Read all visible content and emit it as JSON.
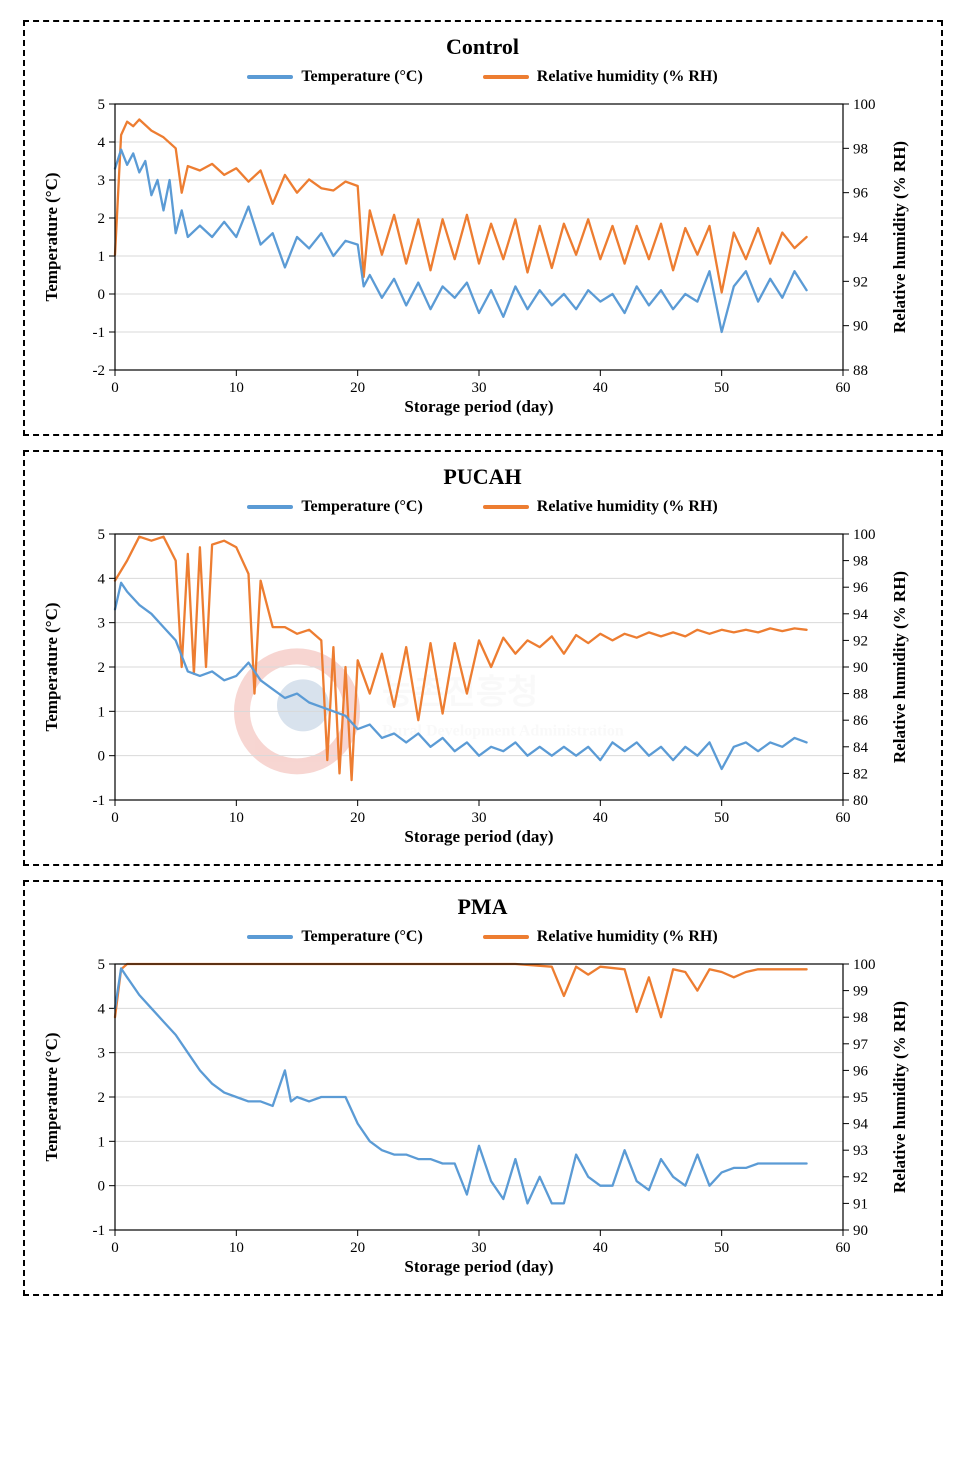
{
  "global": {
    "font_family": "Times New Roman",
    "panel_border": "2px dashed #000",
    "legend_series1": "Temperature (°C)",
    "legend_series2": "Relative humidity (% RH)",
    "color_temp": "#5b9bd5",
    "color_rh": "#ed7d31",
    "line_width": 2.3,
    "bg": "#ffffff"
  },
  "panels": [
    {
      "id": "control",
      "title": "Control",
      "xlabel": "Storage period (day)",
      "ylabel_left": "Temperature (°C)",
      "ylabel_right": "Relative humidity (% RH)",
      "xlim": [
        0,
        60
      ],
      "xtick_step": 10,
      "ylim_left": [
        -2,
        5
      ],
      "ytick_left_step": 1,
      "ylim_right": [
        88,
        100
      ],
      "ytick_right_step": 2,
      "grid": true,
      "grid_color": "#d9d9d9",
      "temp_series": [
        [
          0,
          3.3
        ],
        [
          0.5,
          3.8
        ],
        [
          1,
          3.4
        ],
        [
          1.5,
          3.7
        ],
        [
          2,
          3.2
        ],
        [
          2.5,
          3.5
        ],
        [
          3,
          2.6
        ],
        [
          3.5,
          3.0
        ],
        [
          4,
          2.2
        ],
        [
          4.5,
          3.0
        ],
        [
          5,
          1.6
        ],
        [
          5.5,
          2.2
        ],
        [
          6,
          1.5
        ],
        [
          7,
          1.8
        ],
        [
          8,
          1.5
        ],
        [
          9,
          1.9
        ],
        [
          10,
          1.5
        ],
        [
          11,
          2.3
        ],
        [
          12,
          1.3
        ],
        [
          13,
          1.6
        ],
        [
          14,
          0.7
        ],
        [
          15,
          1.5
        ],
        [
          16,
          1.2
        ],
        [
          17,
          1.6
        ],
        [
          18,
          1.0
        ],
        [
          19,
          1.4
        ],
        [
          20,
          1.3
        ],
        [
          20.5,
          0.2
        ],
        [
          21,
          0.5
        ],
        [
          22,
          -0.1
        ],
        [
          23,
          0.4
        ],
        [
          24,
          -0.3
        ],
        [
          25,
          0.3
        ],
        [
          26,
          -0.4
        ],
        [
          27,
          0.2
        ],
        [
          28,
          -0.1
        ],
        [
          29,
          0.3
        ],
        [
          30,
          -0.5
        ],
        [
          31,
          0.1
        ],
        [
          32,
          -0.6
        ],
        [
          33,
          0.2
        ],
        [
          34,
          -0.4
        ],
        [
          35,
          0.1
        ],
        [
          36,
          -0.3
        ],
        [
          37,
          0.0
        ],
        [
          38,
          -0.4
        ],
        [
          39,
          0.1
        ],
        [
          40,
          -0.2
        ],
        [
          41,
          0.0
        ],
        [
          42,
          -0.5
        ],
        [
          43,
          0.2
        ],
        [
          44,
          -0.3
        ],
        [
          45,
          0.1
        ],
        [
          46,
          -0.4
        ],
        [
          47,
          0.0
        ],
        [
          48,
          -0.2
        ],
        [
          49,
          0.6
        ],
        [
          50,
          -1.0
        ],
        [
          51,
          0.2
        ],
        [
          52,
          0.6
        ],
        [
          53,
          -0.2
        ],
        [
          54,
          0.4
        ],
        [
          55,
          -0.1
        ],
        [
          56,
          0.6
        ],
        [
          57,
          0.1
        ]
      ],
      "rh_series": [
        [
          0,
          93.2
        ],
        [
          0.5,
          98.6
        ],
        [
          1,
          99.2
        ],
        [
          1.5,
          99.0
        ],
        [
          2,
          99.3
        ],
        [
          3,
          98.8
        ],
        [
          4,
          98.5
        ],
        [
          5,
          98.0
        ],
        [
          5.5,
          96.0
        ],
        [
          6,
          97.2
        ],
        [
          7,
          97.0
        ],
        [
          8,
          97.3
        ],
        [
          9,
          96.8
        ],
        [
          10,
          97.1
        ],
        [
          11,
          96.5
        ],
        [
          12,
          97.0
        ],
        [
          13,
          95.5
        ],
        [
          14,
          96.8
        ],
        [
          15,
          96.0
        ],
        [
          16,
          96.6
        ],
        [
          17,
          96.2
        ],
        [
          18,
          96.1
        ],
        [
          19,
          96.5
        ],
        [
          20,
          96.3
        ],
        [
          20.5,
          92.2
        ],
        [
          21,
          95.2
        ],
        [
          22,
          93.2
        ],
        [
          23,
          95.0
        ],
        [
          24,
          92.8
        ],
        [
          25,
          94.8
        ],
        [
          26,
          92.5
        ],
        [
          27,
          94.8
        ],
        [
          28,
          93.0
        ],
        [
          29,
          95.0
        ],
        [
          30,
          92.8
        ],
        [
          31,
          94.6
        ],
        [
          32,
          93.0
        ],
        [
          33,
          94.8
        ],
        [
          34,
          92.4
        ],
        [
          35,
          94.5
        ],
        [
          36,
          92.6
        ],
        [
          37,
          94.6
        ],
        [
          38,
          93.2
        ],
        [
          39,
          94.8
        ],
        [
          40,
          93.0
        ],
        [
          41,
          94.5
        ],
        [
          42,
          92.8
        ],
        [
          43,
          94.5
        ],
        [
          44,
          93.0
        ],
        [
          45,
          94.6
        ],
        [
          46,
          92.5
        ],
        [
          47,
          94.4
        ],
        [
          48,
          93.2
        ],
        [
          49,
          94.5
        ],
        [
          50,
          91.5
        ],
        [
          51,
          94.2
        ],
        [
          52,
          93.0
        ],
        [
          53,
          94.4
        ],
        [
          54,
          92.8
        ],
        [
          55,
          94.2
        ],
        [
          56,
          93.5
        ],
        [
          57,
          94.0
        ]
      ]
    },
    {
      "id": "pucah",
      "title": "PUCAH",
      "xlabel": "Storage period (day)",
      "ylabel_left": "Temperature (°C)",
      "ylabel_right": "Relative humidity (% RH)",
      "xlim": [
        0,
        60
      ],
      "xtick_step": 10,
      "ylim_left": [
        -1,
        5
      ],
      "ytick_left_step": 1,
      "ylim_right": [
        80,
        100
      ],
      "ytick_right_step": 2,
      "grid": true,
      "grid_color": "#d9d9d9",
      "watermark": {
        "korean": "농촌진흥청",
        "english": "Rural Development Administration",
        "circle_fill": "#e36a5c",
        "circle_inner": "#3b6ea5"
      },
      "temp_series": [
        [
          0,
          3.3
        ],
        [
          0.5,
          3.9
        ],
        [
          1,
          3.7
        ],
        [
          2,
          3.4
        ],
        [
          3,
          3.2
        ],
        [
          4,
          2.9
        ],
        [
          5,
          2.6
        ],
        [
          6,
          1.9
        ],
        [
          7,
          1.8
        ],
        [
          8,
          1.9
        ],
        [
          9,
          1.7
        ],
        [
          10,
          1.8
        ],
        [
          11,
          2.1
        ],
        [
          12,
          1.7
        ],
        [
          13,
          1.5
        ],
        [
          14,
          1.3
        ],
        [
          15,
          1.4
        ],
        [
          16,
          1.2
        ],
        [
          17,
          1.1
        ],
        [
          18,
          1.0
        ],
        [
          19,
          0.9
        ],
        [
          20,
          0.6
        ],
        [
          21,
          0.7
        ],
        [
          22,
          0.4
        ],
        [
          23,
          0.5
        ],
        [
          24,
          0.3
        ],
        [
          25,
          0.5
        ],
        [
          26,
          0.2
        ],
        [
          27,
          0.4
        ],
        [
          28,
          0.1
        ],
        [
          29,
          0.3
        ],
        [
          30,
          0.0
        ],
        [
          31,
          0.2
        ],
        [
          32,
          0.1
        ],
        [
          33,
          0.3
        ],
        [
          34,
          0.0
        ],
        [
          35,
          0.2
        ],
        [
          36,
          0.0
        ],
        [
          37,
          0.2
        ],
        [
          38,
          0.0
        ],
        [
          39,
          0.2
        ],
        [
          40,
          -0.1
        ],
        [
          41,
          0.3
        ],
        [
          42,
          0.1
        ],
        [
          43,
          0.3
        ],
        [
          44,
          0.0
        ],
        [
          45,
          0.2
        ],
        [
          46,
          -0.1
        ],
        [
          47,
          0.2
        ],
        [
          48,
          0.0
        ],
        [
          49,
          0.3
        ],
        [
          50,
          -0.3
        ],
        [
          51,
          0.2
        ],
        [
          52,
          0.3
        ],
        [
          53,
          0.1
        ],
        [
          54,
          0.3
        ],
        [
          55,
          0.2
        ],
        [
          56,
          0.4
        ],
        [
          57,
          0.3
        ]
      ],
      "rh_series": [
        [
          0,
          96.5
        ],
        [
          1,
          98.0
        ],
        [
          2,
          99.8
        ],
        [
          3,
          99.5
        ],
        [
          4,
          99.8
        ],
        [
          5,
          98.0
        ],
        [
          5.5,
          90.0
        ],
        [
          6,
          98.5
        ],
        [
          6.5,
          89.5
        ],
        [
          7,
          99.0
        ],
        [
          7.5,
          90.0
        ],
        [
          8,
          99.2
        ],
        [
          9,
          99.5
        ],
        [
          10,
          99.0
        ],
        [
          11,
          97.0
        ],
        [
          11.5,
          88.0
        ],
        [
          12,
          96.5
        ],
        [
          13,
          93.0
        ],
        [
          14,
          93.0
        ],
        [
          15,
          92.5
        ],
        [
          16,
          92.8
        ],
        [
          17,
          92.0
        ],
        [
          17.5,
          83.0
        ],
        [
          18,
          91.5
        ],
        [
          18.5,
          82.0
        ],
        [
          19,
          90.0
        ],
        [
          19.5,
          81.5
        ],
        [
          20,
          90.5
        ],
        [
          21,
          88.0
        ],
        [
          22,
          91.0
        ],
        [
          23,
          87.0
        ],
        [
          24,
          91.5
        ],
        [
          25,
          86.0
        ],
        [
          26,
          91.8
        ],
        [
          27,
          86.5
        ],
        [
          28,
          91.8
        ],
        [
          29,
          88.0
        ],
        [
          30,
          92.0
        ],
        [
          31,
          90.0
        ],
        [
          32,
          92.2
        ],
        [
          33,
          91.0
        ],
        [
          34,
          92.0
        ],
        [
          35,
          91.5
        ],
        [
          36,
          92.3
        ],
        [
          37,
          91.0
        ],
        [
          38,
          92.4
        ],
        [
          39,
          91.8
        ],
        [
          40,
          92.5
        ],
        [
          41,
          92.0
        ],
        [
          42,
          92.5
        ],
        [
          43,
          92.2
        ],
        [
          44,
          92.6
        ],
        [
          45,
          92.3
        ],
        [
          46,
          92.6
        ],
        [
          47,
          92.3
        ],
        [
          48,
          92.8
        ],
        [
          49,
          92.5
        ],
        [
          50,
          92.8
        ],
        [
          51,
          92.6
        ],
        [
          52,
          92.8
        ],
        [
          53,
          92.6
        ],
        [
          54,
          92.9
        ],
        [
          55,
          92.7
        ],
        [
          56,
          92.9
        ],
        [
          57,
          92.8
        ]
      ]
    },
    {
      "id": "pma",
      "title": "PMA",
      "xlabel": "Storage period (day)",
      "ylabel_left": "Temperature (°C)",
      "ylabel_right": "Relative humidity (% RH)",
      "xlim": [
        0,
        60
      ],
      "xtick_step": 10,
      "ylim_left": [
        -1,
        5
      ],
      "ytick_left_step": 1,
      "ylim_right": [
        90,
        100
      ],
      "ytick_right_step": 1,
      "grid": true,
      "grid_color": "#d9d9d9",
      "temp_series": [
        [
          0,
          4.0
        ],
        [
          0.5,
          4.9
        ],
        [
          1,
          4.7
        ],
        [
          2,
          4.3
        ],
        [
          3,
          4.0
        ],
        [
          4,
          3.7
        ],
        [
          5,
          3.4
        ],
        [
          6,
          3.0
        ],
        [
          7,
          2.6
        ],
        [
          8,
          2.3
        ],
        [
          9,
          2.1
        ],
        [
          10,
          2.0
        ],
        [
          11,
          1.9
        ],
        [
          12,
          1.9
        ],
        [
          13,
          1.8
        ],
        [
          14,
          2.6
        ],
        [
          14.5,
          1.9
        ],
        [
          15,
          2.0
        ],
        [
          16,
          1.9
        ],
        [
          17,
          2.0
        ],
        [
          18,
          2.0
        ],
        [
          19,
          2.0
        ],
        [
          20,
          1.4
        ],
        [
          21,
          1.0
        ],
        [
          22,
          0.8
        ],
        [
          23,
          0.7
        ],
        [
          24,
          0.7
        ],
        [
          25,
          0.6
        ],
        [
          26,
          0.6
        ],
        [
          27,
          0.5
        ],
        [
          28,
          0.5
        ],
        [
          29,
          -0.2
        ],
        [
          30,
          0.9
        ],
        [
          31,
          0.1
        ],
        [
          32,
          -0.3
        ],
        [
          33,
          0.6
        ],
        [
          34,
          -0.4
        ],
        [
          35,
          0.2
        ],
        [
          36,
          -0.4
        ],
        [
          37,
          -0.4
        ],
        [
          38,
          0.7
        ],
        [
          39,
          0.2
        ],
        [
          40,
          0.0
        ],
        [
          41,
          0.0
        ],
        [
          42,
          0.8
        ],
        [
          43,
          0.1
        ],
        [
          44,
          -0.1
        ],
        [
          45,
          0.6
        ],
        [
          46,
          0.2
        ],
        [
          47,
          0.0
        ],
        [
          48,
          0.7
        ],
        [
          49,
          0.0
        ],
        [
          50,
          0.3
        ],
        [
          51,
          0.4
        ],
        [
          52,
          0.4
        ],
        [
          53,
          0.5
        ],
        [
          54,
          0.5
        ],
        [
          55,
          0.5
        ],
        [
          56,
          0.5
        ],
        [
          57,
          0.5
        ]
      ],
      "rh_series": [
        [
          0,
          98.0
        ],
        [
          0.5,
          99.8
        ],
        [
          1,
          100.0
        ],
        [
          5,
          100.0
        ],
        [
          10,
          100.0
        ],
        [
          15,
          100.0
        ],
        [
          20,
          100.0
        ],
        [
          25,
          100.0
        ],
        [
          30,
          100.0
        ],
        [
          33,
          100.0
        ],
        [
          36,
          99.9
        ],
        [
          37,
          98.8
        ],
        [
          38,
          99.9
        ],
        [
          39,
          99.6
        ],
        [
          40,
          99.9
        ],
        [
          42,
          99.8
        ],
        [
          43,
          98.2
        ],
        [
          44,
          99.5
        ],
        [
          45,
          98.0
        ],
        [
          46,
          99.8
        ],
        [
          47,
          99.7
        ],
        [
          48,
          99.0
        ],
        [
          49,
          99.8
        ],
        [
          50,
          99.7
        ],
        [
          51,
          99.5
        ],
        [
          52,
          99.7
        ],
        [
          53,
          99.8
        ],
        [
          54,
          99.8
        ],
        [
          55,
          99.8
        ],
        [
          56,
          99.8
        ],
        [
          57,
          99.8
        ]
      ]
    }
  ]
}
